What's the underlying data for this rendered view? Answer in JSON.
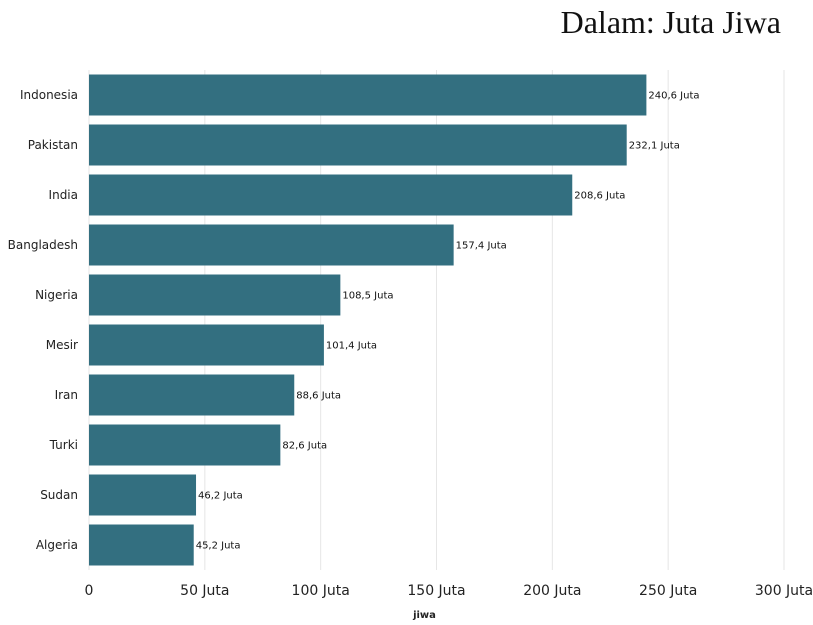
{
  "header": {
    "unit_note": "Dalam: Juta Jiwa"
  },
  "chart_data": {
    "type": "bar",
    "orientation": "horizontal",
    "categories": [
      "Indonesia",
      "Pakistan",
      "India",
      "Bangladesh",
      "Nigeria",
      "Mesir",
      "Iran",
      "Turki",
      "Sudan",
      "Algeria"
    ],
    "values": [
      240.6,
      232.1,
      208.6,
      157.4,
      108.5,
      101.4,
      88.6,
      82.6,
      46.2,
      45.2
    ],
    "value_labels": [
      "240,6 Juta",
      "232,1 Juta",
      "208,6 Juta",
      "157,4 Juta",
      "108,5 Juta",
      "101,4 Juta",
      "88,6 Juta",
      "82,6 Juta",
      "46,2 Juta",
      "45,2 Juta"
    ],
    "xlabel": "jiwa",
    "xlim": [
      0,
      300
    ],
    "x_ticks": [
      0,
      50,
      100,
      150,
      200,
      250,
      300
    ],
    "x_tick_labels": [
      "0",
      "50 Juta",
      "100 Juta",
      "150 Juta",
      "200 Juta",
      "250 Juta",
      "300 Juta"
    ],
    "grid": true,
    "bar_color": "#336f80"
  }
}
